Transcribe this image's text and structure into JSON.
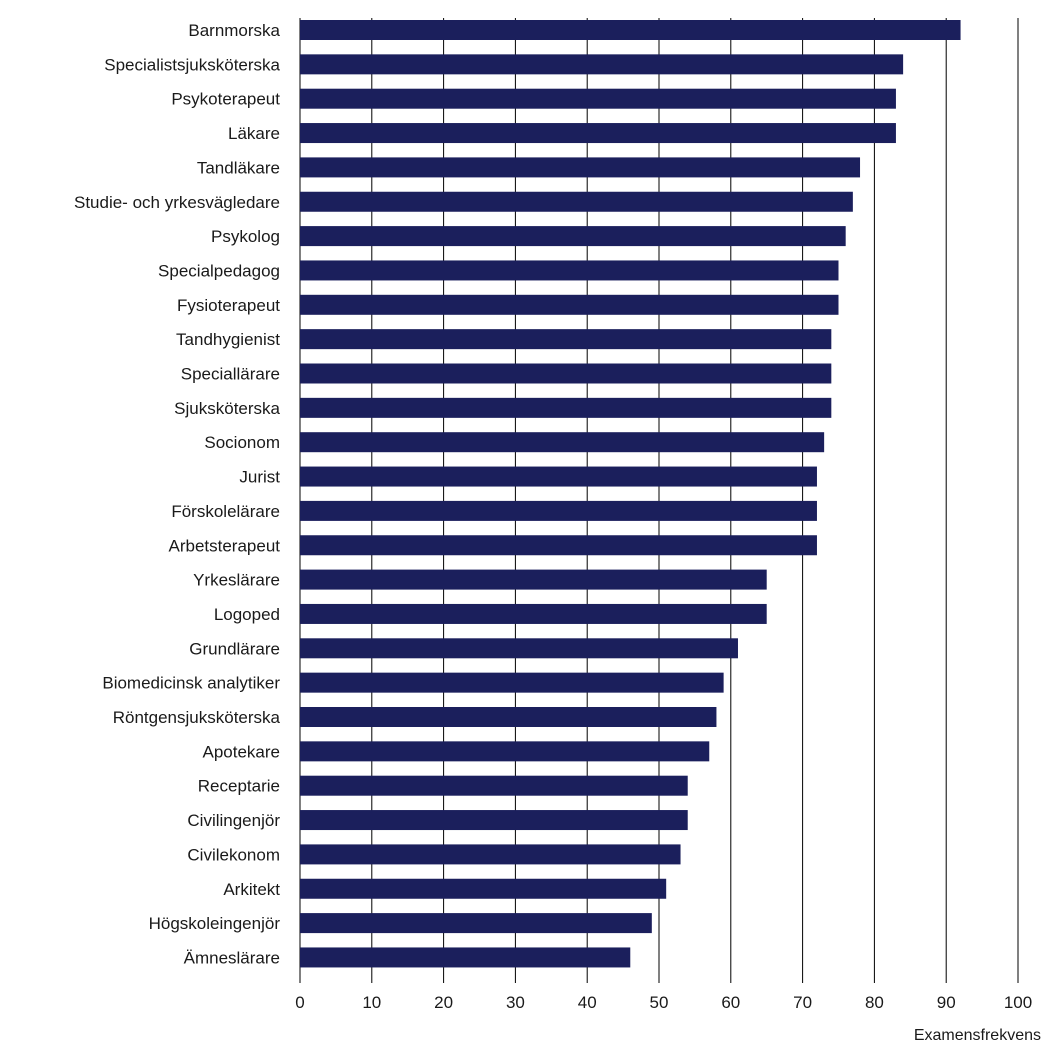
{
  "chart_data": {
    "type": "bar",
    "orientation": "horizontal",
    "categories": [
      "Barnmorska",
      "Specialistsjuksköterska",
      "Psykoterapeut",
      "Läkare",
      "Tandläkare",
      "Studie- och yrkesvägledare",
      "Psykolog",
      "Specialpedagog",
      "Fysioterapeut",
      "Tandhygienist",
      "Speciallärare",
      "Sjuksköterska",
      "Socionom",
      "Jurist",
      "Förskolelärare",
      "Arbetsterapeut",
      "Yrkeslärare",
      "Logoped",
      "Grundlärare",
      "Biomedicinsk analytiker",
      "Röntgensjuksköterska",
      "Apotekare",
      "Receptarie",
      "Civilingenjör",
      "Civilekonom",
      "Arkitekt",
      "Högskoleingenjör",
      "Ämneslärare"
    ],
    "values": [
      92,
      84,
      83,
      83,
      78,
      77,
      76,
      75,
      75,
      74,
      74,
      74,
      73,
      72,
      72,
      72,
      65,
      65,
      61,
      59,
      58,
      57,
      54,
      54,
      53,
      51,
      49,
      46
    ],
    "xlabel": "Examensfrekvens",
    "xlim": [
      0,
      100
    ],
    "xticks": [
      "0",
      "10",
      "20",
      "30",
      "40",
      "50",
      "60",
      "70",
      "80",
      "90",
      "100"
    ],
    "grid": "vertical",
    "bar_color": "#1b1f5c",
    "grid_color": "#000000"
  }
}
